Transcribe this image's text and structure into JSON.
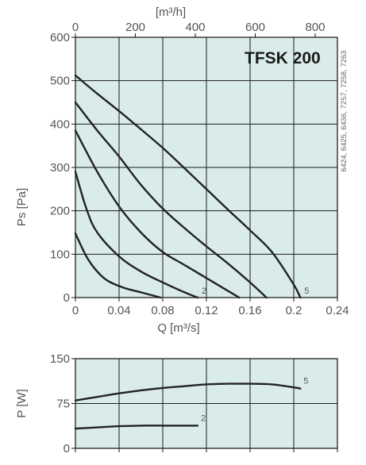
{
  "model_title": "TFSK 200",
  "side_note": "6424, 6425, 6436, 7257, 7258, 7263",
  "colors": {
    "plot_background": "#d9ece9",
    "grid": "#1a1a1a",
    "curve": "#222222"
  },
  "chart_data": [
    {
      "type": "line",
      "xlabel": "Q [m³/s]",
      "ylabel": "Ps [Pa]",
      "top_axis_label": "[m³/h]",
      "xlim": [
        0,
        0.24
      ],
      "ylim": [
        0,
        600
      ],
      "x_ticks": [
        "0",
        "0.04",
        "0.08",
        "0.12",
        "0.16",
        "0.2",
        "0.24"
      ],
      "y_ticks": [
        "0",
        "100",
        "200",
        "300",
        "400",
        "500",
        "600"
      ],
      "top_ticks": [
        "0",
        "200",
        "400",
        "600",
        "800"
      ],
      "grid": true,
      "series": [
        {
          "name": "",
          "x": [
            0,
            0.01,
            0.02,
            0.03,
            0.045,
            0.06,
            0.078
          ],
          "y": [
            148,
            95,
            60,
            38,
            22,
            12,
            0
          ]
        },
        {
          "name": "2",
          "x": [
            0,
            0.01,
            0.02,
            0.04,
            0.06,
            0.08,
            0.1,
            0.112
          ],
          "y": [
            290,
            205,
            150,
            95,
            60,
            35,
            12,
            0
          ]
        },
        {
          "name": "",
          "x": [
            0,
            0.02,
            0.04,
            0.06,
            0.08,
            0.1,
            0.12,
            0.14,
            0.15
          ],
          "y": [
            385,
            290,
            210,
            150,
            105,
            75,
            45,
            15,
            0
          ]
        },
        {
          "name": "",
          "x": [
            0,
            0.02,
            0.04,
            0.06,
            0.08,
            0.1,
            0.12,
            0.14,
            0.16,
            0.175
          ],
          "y": [
            450,
            385,
            325,
            260,
            205,
            160,
            118,
            78,
            35,
            0
          ]
        },
        {
          "name": "5",
          "x": [
            0,
            0.02,
            0.04,
            0.06,
            0.08,
            0.1,
            0.12,
            0.14,
            0.16,
            0.18,
            0.2,
            0.206
          ],
          "y": [
            512,
            470,
            430,
            388,
            345,
            298,
            250,
            202,
            155,
            105,
            30,
            0
          ]
        }
      ]
    },
    {
      "type": "line",
      "ylabel": "P [W]",
      "xlim": [
        0,
        0.24
      ],
      "ylim": [
        0,
        150
      ],
      "y_ticks": [
        "0",
        "75",
        "150"
      ],
      "grid": true,
      "series": [
        {
          "name": "5",
          "x": [
            0,
            0.02,
            0.04,
            0.06,
            0.08,
            0.1,
            0.12,
            0.14,
            0.16,
            0.18,
            0.2,
            0.206
          ],
          "y": [
            80,
            86,
            92,
            97,
            101,
            104,
            107,
            108,
            108,
            107,
            102,
            100
          ]
        },
        {
          "name": "2",
          "x": [
            0,
            0.02,
            0.04,
            0.06,
            0.08,
            0.1,
            0.112
          ],
          "y": [
            33,
            35,
            37,
            38,
            38,
            38,
            38
          ]
        }
      ]
    }
  ]
}
